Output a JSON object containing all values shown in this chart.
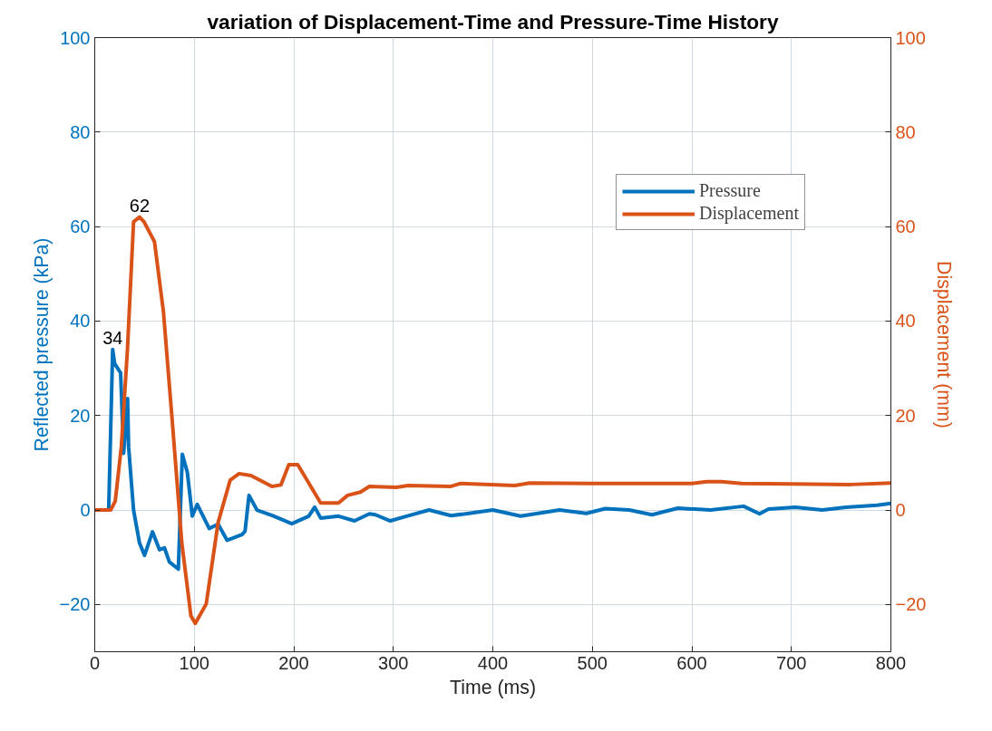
{
  "chart_data": {
    "type": "line",
    "title": "variation of Displacement-Time and Pressure-Time History",
    "xlabel": "Time (ms)",
    "ylabel": "Reflected pressure (kPa)",
    "y2label": "Displacement (mm)",
    "xlim": [
      0,
      800
    ],
    "xticks": [
      0,
      100,
      200,
      300,
      400,
      500,
      600,
      700,
      800
    ],
    "ylim": [
      -30,
      100
    ],
    "yticks": [
      -20,
      0,
      20,
      40,
      60,
      80,
      100
    ],
    "y2lim": [
      -30,
      100
    ],
    "y2ticks": [
      -20,
      0,
      20,
      40,
      60,
      80,
      100
    ],
    "grid": true,
    "legend": "top right",
    "line_style": "solid",
    "marker": "none",
    "annotations": [
      {
        "text": "34",
        "x": 18,
        "y": 34
      },
      {
        "text": "62",
        "x": 45,
        "y": 62
      }
    ],
    "series": [
      {
        "name": "Pressure",
        "color": "#0072bd",
        "x": [
          0,
          14,
          18,
          20,
          26,
          29,
          33,
          34,
          39,
          45,
          50,
          58,
          65,
          70,
          75,
          84,
          88,
          93,
          98,
          103,
          115,
          124,
          133,
          148,
          151,
          155,
          163,
          179,
          198,
          215,
          221,
          227,
          245,
          261,
          276,
          282,
          297,
          315,
          336,
          358,
          376,
          400,
          428,
          467,
          494,
          513,
          537,
          560,
          586,
          619,
          652,
          668,
          677,
          704,
          731,
          755,
          786,
          800
        ],
        "values": [
          0,
          0,
          34,
          31,
          29,
          12,
          23.6,
          13.4,
          0,
          -7,
          -9.6,
          -4.6,
          -8.4,
          -8,
          -11,
          -12.5,
          11.8,
          8,
          -1.3,
          1.2,
          -3.9,
          -3,
          -6.4,
          -5.2,
          -4.5,
          3.1,
          0,
          -1.2,
          -2.9,
          -1.3,
          0.6,
          -1.7,
          -1.3,
          -2.3,
          -0.8,
          -1,
          -2.3,
          -1.2,
          0,
          -1.2,
          -0.7,
          0,
          -1.3,
          0,
          -0.7,
          0.3,
          0,
          -1,
          0.4,
          0,
          0.8,
          -0.8,
          0.2,
          0.6,
          0,
          0.6,
          1,
          1.4
        ]
      },
      {
        "name": "Displacement",
        "color": "#d95319",
        "axis": "y2",
        "x": [
          0,
          16,
          20.6,
          26.7,
          32.8,
          39,
          45,
          49.5,
          60,
          69,
          78,
          87.5,
          96.6,
          101,
          112,
          124,
          136,
          145,
          157,
          178,
          187,
          195,
          204,
          227,
          245,
          254,
          267,
          276,
          303,
          315,
          358,
          367,
          422,
          437,
          498,
          600,
          615,
          630,
          650,
          700,
          760,
          800
        ],
        "values": [
          0,
          0,
          1.9,
          13.4,
          33.8,
          61,
          62,
          61,
          56.8,
          42,
          18.5,
          -7,
          -22.4,
          -24,
          -19.9,
          -2.6,
          6.3,
          7.7,
          7.3,
          5,
          5.3,
          9.6,
          9.6,
          1.5,
          1.5,
          3.1,
          3.8,
          5,
          4.8,
          5.2,
          5,
          5.6,
          5.2,
          5.7,
          5.6,
          5.6,
          6,
          6,
          5.6,
          5.5,
          5.4,
          5.7
        ]
      }
    ]
  }
}
